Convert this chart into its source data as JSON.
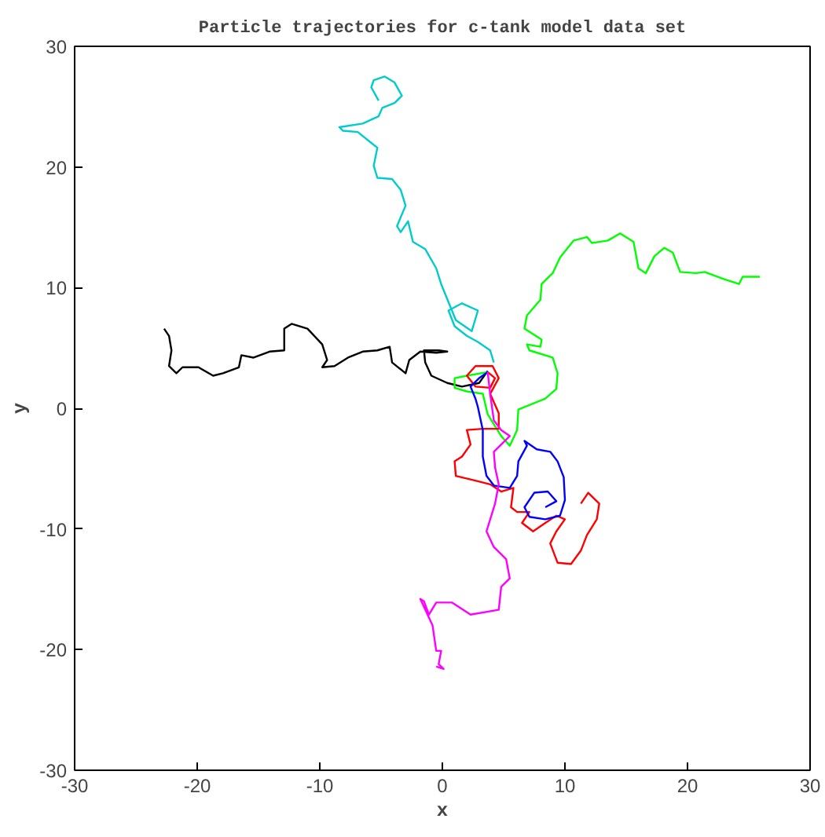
{
  "chart_data": {
    "type": "line",
    "title": "Particle trajectories for c-tank model data set",
    "xlabel": "x",
    "ylabel": "y",
    "xlim": [
      -30,
      30
    ],
    "ylim": [
      -30,
      30
    ],
    "xticks": [
      -30,
      -20,
      -10,
      0,
      10,
      20,
      30
    ],
    "yticks": [
      -30,
      -20,
      -10,
      0,
      10,
      20,
      30
    ],
    "line_style": "solid",
    "series": [
      {
        "color": "#00cccc",
        "x": [
          4.2,
          3.9,
          2.9,
          2.0,
          1.0,
          0.5,
          1.6,
          2.9,
          2.4,
          1.1,
          -0.1,
          -0.5,
          -1.4,
          -2.4,
          -2.8,
          -3.4,
          -3.7,
          -3.0,
          -3.4,
          -4.1,
          -5.3,
          -5.6,
          -5.3,
          -5.8,
          -6.9,
          -8.1,
          -8.4,
          -6.5,
          -5.2,
          -4.9,
          -3.9,
          -3.3,
          -3.9,
          -4.7,
          -5.6,
          -5.8,
          -5.2
        ],
        "values": [
          3.8,
          4.8,
          5.5,
          6.0,
          6.8,
          8.1,
          8.7,
          8.1,
          6.4,
          7.3,
          10.3,
          11.6,
          13.2,
          13.8,
          15.5,
          14.6,
          15.1,
          16.8,
          18.1,
          19.0,
          19.1,
          20.1,
          21.6,
          22.0,
          22.9,
          23.0,
          23.3,
          23.6,
          24.2,
          24.9,
          25.3,
          25.9,
          27.0,
          27.5,
          27.2,
          26.6,
          25.5
        ]
      },
      {
        "color": "#000000",
        "x": [
          3.7,
          3.0,
          1.6,
          0.4,
          -0.9,
          -1.4,
          -1.5,
          -0.3,
          0.4,
          -0.5,
          -1.8,
          -2.7,
          -3.0,
          -4.1,
          -4.3,
          -5.3,
          -6.5,
          -7.7,
          -8.8,
          -9.8,
          -9.4,
          -9.8,
          -11.0,
          -12.3,
          -12.9,
          -12.9,
          -14.1,
          -15.4,
          -16.4,
          -16.6,
          -17.9,
          -18.7,
          -19.9,
          -21.2,
          -21.7,
          -22.3,
          -22.1,
          -22.3,
          -22.7
        ],
        "values": [
          3.1,
          2.1,
          1.8,
          2.1,
          2.7,
          3.8,
          4.8,
          4.8,
          4.7,
          4.6,
          4.7,
          4.0,
          2.9,
          3.8,
          5.1,
          4.8,
          4.7,
          4.2,
          3.5,
          3.4,
          4.0,
          5.3,
          6.6,
          7.0,
          6.6,
          4.8,
          4.7,
          4.2,
          4.4,
          3.4,
          2.9,
          2.7,
          3.4,
          3.4,
          2.9,
          3.5,
          4.8,
          6.0,
          6.6
        ]
      },
      {
        "color": "#00ff00",
        "x": [
          3.7,
          2.0,
          1.0,
          1.0,
          2.0,
          3.3,
          3.7,
          4.8,
          5.5,
          6.1,
          6.2,
          6.7,
          8.4,
          9.3,
          9.4,
          9.0,
          7.1,
          6.9,
          8.0,
          8.1,
          6.7,
          6.9,
          8.0,
          8.1,
          9.0,
          9.6,
          10.7,
          11.8,
          12.2,
          13.5,
          14.5,
          15.6,
          16.0,
          16.6,
          17.3,
          18.1,
          18.8,
          19.4,
          20.7,
          21.4,
          23.0,
          24.2,
          24.5,
          25.9
        ],
        "values": [
          3.0,
          2.7,
          2.5,
          1.7,
          1.4,
          1.2,
          -0.5,
          -2.3,
          -3.1,
          -1.8,
          -0.1,
          0.1,
          0.8,
          1.6,
          2.9,
          4.2,
          4.8,
          5.3,
          5.1,
          5.7,
          6.6,
          7.7,
          9.0,
          10.3,
          11.2,
          12.5,
          13.9,
          14.2,
          13.7,
          13.9,
          14.5,
          13.8,
          11.6,
          11.2,
          12.6,
          13.3,
          12.9,
          11.3,
          11.2,
          11.3,
          10.7,
          10.3,
          10.9,
          10.9
        ]
      },
      {
        "color": "#ff0000",
        "x": [
          3.7,
          4.3,
          3.9,
          2.7,
          2.0,
          2.7,
          4.1,
          4.6,
          3.9,
          4.6,
          4.6,
          3.3,
          2.0,
          2.3,
          1.6,
          1.0,
          1.1,
          2.7,
          3.9,
          4.8,
          5.8,
          5.6,
          6.1,
          7.1,
          6.5,
          7.4,
          8.4,
          9.3,
          10.0,
          9.3,
          8.8,
          9.4,
          10.5,
          11.3,
          11.8,
          12.6,
          12.8,
          11.9,
          11.3
        ],
        "values": [
          3.0,
          2.5,
          1.7,
          1.8,
          2.7,
          3.5,
          3.5,
          2.5,
          1.2,
          -0.4,
          -1.7,
          -1.7,
          -1.8,
          -3.0,
          -4.0,
          -4.4,
          -5.6,
          -6.0,
          -6.3,
          -6.9,
          -6.6,
          -8.2,
          -8.6,
          -8.6,
          -9.5,
          -10.2,
          -9.5,
          -8.9,
          -9.2,
          -10.2,
          -11.2,
          -12.8,
          -12.9,
          -11.8,
          -10.5,
          -9.2,
          -7.9,
          -7.0,
          -7.9
        ]
      },
      {
        "color": "#0000ff",
        "x": [
          3.7,
          3.0,
          2.3,
          2.7,
          2.9,
          3.3,
          3.3,
          3.6,
          4.2,
          5.5,
          6.1,
          6.2,
          6.9,
          6.7,
          7.7,
          8.8,
          9.4,
          9.9,
          10.0,
          9.6,
          8.4,
          7.1,
          6.7,
          7.5,
          8.6,
          9.3,
          8.4
        ],
        "values": [
          3.0,
          2.5,
          1.8,
          0.8,
          0.1,
          -1.8,
          -4.0,
          -5.6,
          -6.4,
          -6.6,
          -5.6,
          -4.4,
          -3.1,
          -2.7,
          -3.4,
          -3.6,
          -4.4,
          -5.7,
          -7.6,
          -8.9,
          -9.2,
          -9.0,
          -8.2,
          -7.0,
          -6.9,
          -7.7,
          -8.2
        ]
      },
      {
        "color": "#ff00ff",
        "x": [
          3.7,
          3.9,
          4.2,
          4.8,
          5.5,
          4.8,
          4.2,
          4.3,
          4.6,
          4.3,
          3.6,
          4.2,
          5.2,
          5.5,
          4.8,
          4.6,
          2.3,
          0.8,
          -0.5,
          -1.1,
          -1.5,
          -1.8,
          -0.8,
          -0.5,
          -0.1,
          -0.3,
          0.1,
          -0.5
        ],
        "values": [
          3.0,
          1.2,
          -1.0,
          -1.8,
          -2.3,
          -3.0,
          -3.6,
          -4.9,
          -6.3,
          -7.9,
          -10.2,
          -11.5,
          -12.5,
          -14.1,
          -14.8,
          -16.7,
          -17.1,
          -16.1,
          -16.1,
          -17.1,
          -16.0,
          -15.8,
          -18.0,
          -20.1,
          -20.1,
          -21.2,
          -21.6,
          -21.4
        ]
      }
    ]
  }
}
